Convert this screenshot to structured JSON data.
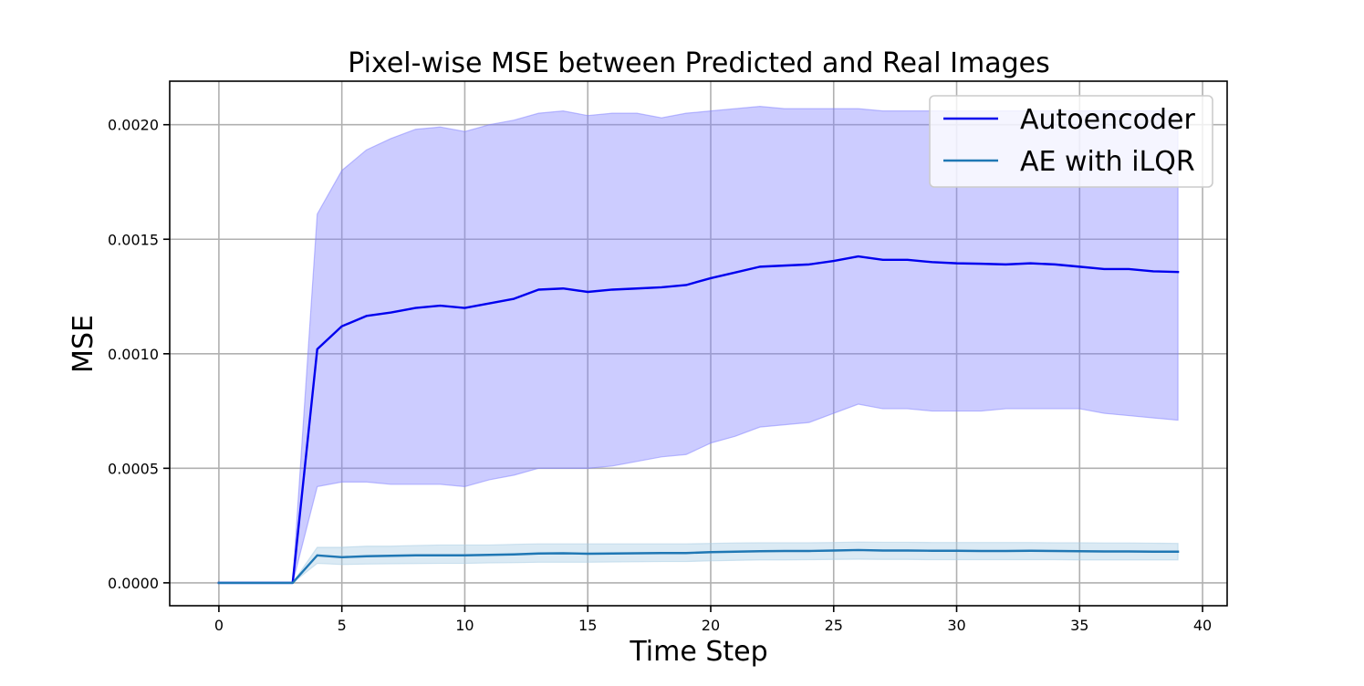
{
  "chart_data": {
    "type": "line",
    "title": "Pixel-wise MSE between Predicted and Real Images",
    "xlabel": "Time Step",
    "ylabel": "MSE",
    "xlim": [
      -2,
      41
    ],
    "ylim": [
      -0.0001,
      0.00219
    ],
    "xticks": [
      0,
      5,
      10,
      15,
      20,
      25,
      30,
      35,
      40
    ],
    "xtick_labels": [
      "0",
      "5",
      "10",
      "15",
      "20",
      "25",
      "30",
      "35",
      "40"
    ],
    "yticks": [
      0,
      0.0005,
      0.001,
      0.0015,
      0.002
    ],
    "ytick_labels": [
      "0.0000",
      "0.0005",
      "0.0010",
      "0.0015",
      "0.0020"
    ],
    "grid": true,
    "legend_position": "top-right",
    "x": [
      0,
      1,
      2,
      3,
      4,
      5,
      6,
      7,
      8,
      9,
      10,
      11,
      12,
      13,
      14,
      15,
      16,
      17,
      18,
      19,
      20,
      21,
      22,
      23,
      24,
      25,
      26,
      27,
      28,
      29,
      30,
      31,
      32,
      33,
      34,
      35,
      36,
      37,
      38,
      39
    ],
    "series": [
      {
        "name": "Autoencoder",
        "color": "#0000ee",
        "band_color": "#8080ff",
        "values": [
          0,
          0,
          0,
          0,
          0.00102,
          0.00112,
          0.001165,
          0.00118,
          0.0012,
          0.00121,
          0.0012,
          0.00122,
          0.00124,
          0.00128,
          0.001285,
          0.00127,
          0.00128,
          0.001285,
          0.00129,
          0.0013,
          0.00133,
          0.001355,
          0.00138,
          0.001385,
          0.00139,
          0.001405,
          0.001425,
          0.00141,
          0.00141,
          0.0014,
          0.001395,
          0.001393,
          0.00139,
          0.001395,
          0.00139,
          0.00138,
          0.00137,
          0.00137,
          0.00136,
          0.001357
        ],
        "upper": [
          0,
          0,
          0,
          0,
          0.00161,
          0.0018,
          0.00189,
          0.00194,
          0.00198,
          0.00199,
          0.00197,
          0.002,
          0.00202,
          0.00205,
          0.00206,
          0.00204,
          0.00205,
          0.00205,
          0.00203,
          0.00205,
          0.00206,
          0.00207,
          0.00208,
          0.00207,
          0.00207,
          0.00207,
          0.00207,
          0.00206,
          0.00206,
          0.00206,
          0.00206,
          0.00206,
          0.00206,
          0.00206,
          0.00206,
          0.00206,
          0.00206,
          0.00206,
          0.00206,
          0.00206
        ],
        "lower": [
          0,
          0,
          0,
          0,
          0.00042,
          0.00044,
          0.00044,
          0.00043,
          0.00043,
          0.00043,
          0.00042,
          0.00045,
          0.00047,
          0.0005,
          0.0005,
          0.0005,
          0.00051,
          0.00053,
          0.00055,
          0.00056,
          0.00061,
          0.00064,
          0.00068,
          0.00069,
          0.0007,
          0.00074,
          0.00078,
          0.00076,
          0.00076,
          0.00075,
          0.00075,
          0.00075,
          0.00076,
          0.00076,
          0.00076,
          0.00076,
          0.00074,
          0.00073,
          0.00072,
          0.00071
        ]
      },
      {
        "name": "AE with iLQR",
        "color": "#1f77b4",
        "band_color": "#a6cbe3",
        "values": [
          0,
          0,
          0,
          0,
          0.00012,
          0.000112,
          0.000116,
          0.000118,
          0.00012,
          0.00012,
          0.00012,
          0.000122,
          0.000124,
          0.000128,
          0.000129,
          0.000127,
          0.000128,
          0.000129,
          0.00013,
          0.00013,
          0.000134,
          0.000136,
          0.000138,
          0.000139,
          0.000139,
          0.000141,
          0.000143,
          0.000141,
          0.000141,
          0.00014,
          0.00014,
          0.000139,
          0.000139,
          0.00014,
          0.000139,
          0.000138,
          0.000137,
          0.000137,
          0.000136,
          0.000136
        ],
        "upper": [
          0,
          0,
          0,
          0,
          0.000155,
          0.000155,
          0.00016,
          0.00016,
          0.000163,
          0.000165,
          0.000165,
          0.000165,
          0.000168,
          0.00017,
          0.00017,
          0.00017,
          0.00017,
          0.00017,
          0.00017,
          0.00017,
          0.000172,
          0.000174,
          0.000175,
          0.000175,
          0.000175,
          0.000176,
          0.000178,
          0.000177,
          0.000177,
          0.000176,
          0.000176,
          0.000176,
          0.000176,
          0.000176,
          0.000175,
          0.000175,
          0.000174,
          0.000174,
          0.000173,
          0.000172
        ],
        "lower": [
          0,
          0,
          0,
          0,
          8.5e-05,
          8e-05,
          8.2e-05,
          8.3e-05,
          8.4e-05,
          8.5e-05,
          8.5e-05,
          8.7e-05,
          8.8e-05,
          9e-05,
          9e-05,
          9e-05,
          9.1e-05,
          9.2e-05,
          9.3e-05,
          9.3e-05,
          9.6e-05,
          9.8e-05,
          0.0001,
          0.0001,
          0.000101,
          0.000102,
          0.000103,
          0.000102,
          0.000102,
          0.000101,
          0.000101,
          0.000101,
          0.000101,
          0.000101,
          0.000101,
          0.0001,
          0.0001,
          0.0001,
          0.0001,
          0.0001
        ]
      }
    ]
  }
}
